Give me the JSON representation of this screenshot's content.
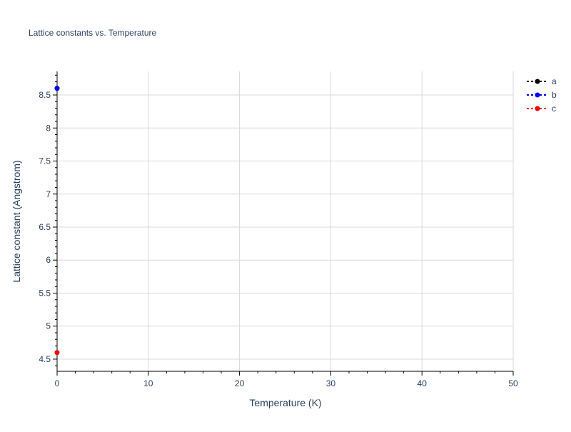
{
  "chart_data": {
    "type": "line",
    "title": "Lattice constants vs. Temperature",
    "xlabel": "Temperature (K)",
    "ylabel": "Lattice constant (Angstrom)",
    "xlim": [
      0,
      50
    ],
    "ylim": [
      4.316,
      8.857
    ],
    "xticks": [
      0,
      10,
      20,
      30,
      40,
      50
    ],
    "yticks": [
      4.5,
      5,
      5.5,
      6,
      6.5,
      7,
      7.5,
      8,
      8.5
    ],
    "xtick_labels": [
      "0",
      "10",
      "20",
      "30",
      "40",
      "50"
    ],
    "ytick_labels": [
      "4.5",
      "5",
      "5.5",
      "6",
      "6.5",
      "7",
      "7.5",
      "8",
      "8.5"
    ],
    "grid": true,
    "legend_position": "top-right",
    "series": [
      {
        "name": "a",
        "color": "#000000",
        "x": [
          0
        ],
        "y": [
          8.6
        ]
      },
      {
        "name": "b",
        "color": "#0000ff",
        "x": [
          0
        ],
        "y": [
          8.6
        ]
      },
      {
        "name": "c",
        "color": "#ff0000",
        "x": [
          0
        ],
        "y": [
          4.6
        ]
      }
    ]
  }
}
